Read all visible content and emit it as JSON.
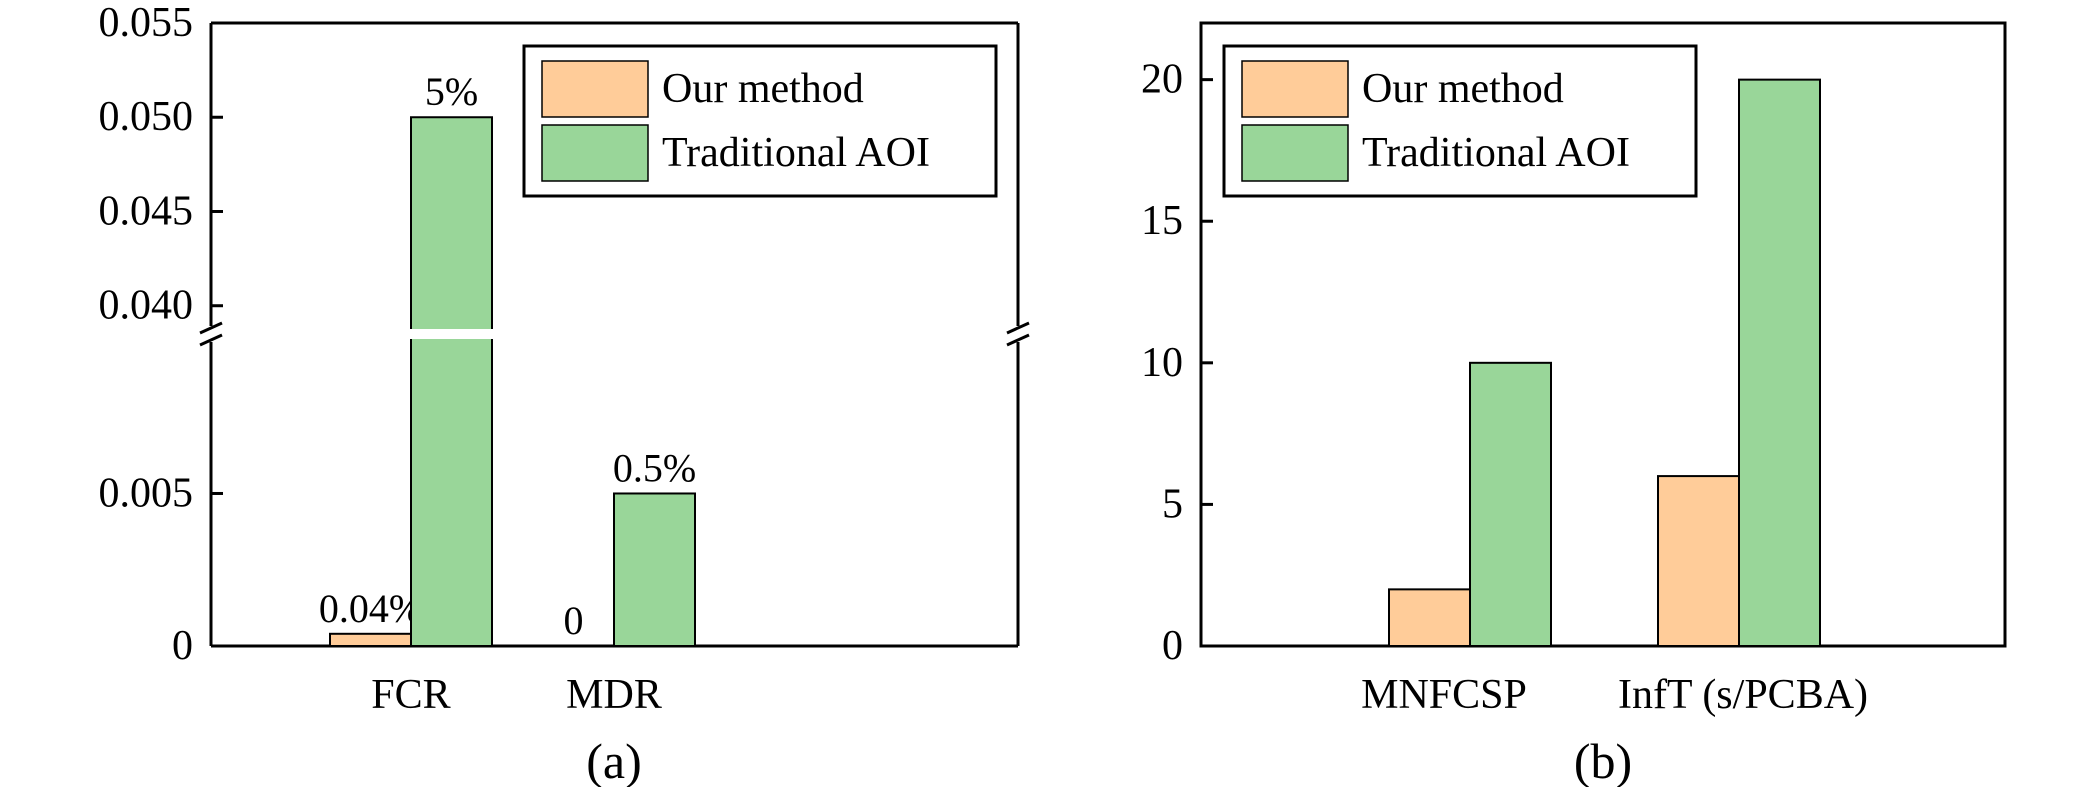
{
  "colors": {
    "our_method": "#FFCC99",
    "traditional_aoi": "#99D699",
    "axis": "#000000"
  },
  "chart_data": [
    {
      "type": "bar",
      "caption": "(a)",
      "categories": [
        "FCR",
        "MDR"
      ],
      "series": [
        {
          "name": "Our method",
          "values": [
            0.0004,
            0
          ],
          "labels": [
            "0.04%",
            "0"
          ]
        },
        {
          "name": "Traditional AOI",
          "values": [
            0.05,
            0.005
          ],
          "labels": [
            "5%",
            "0.5%"
          ]
        }
      ],
      "broken_axis": true,
      "ylim_lower": [
        0,
        0.0099
      ],
      "ylim_upper": [
        0.0385,
        0.055
      ],
      "yticks_lower": [
        "0",
        "0.005"
      ],
      "yticks_upper": [
        "0.040",
        "0.045",
        "0.050",
        "0.055"
      ],
      "legend": "top-right",
      "grid": false
    },
    {
      "type": "bar",
      "caption": "(b)",
      "categories": [
        "MNFCSP",
        "InfT (s/PCBA)"
      ],
      "series": [
        {
          "name": "Our method",
          "values": [
            2,
            6
          ]
        },
        {
          "name": "Traditional AOI",
          "values": [
            10,
            20
          ]
        }
      ],
      "ylim": [
        0,
        22
      ],
      "yticks": [
        "0",
        "5",
        "10",
        "15",
        "20"
      ],
      "legend": "top-left",
      "grid": false
    }
  ]
}
